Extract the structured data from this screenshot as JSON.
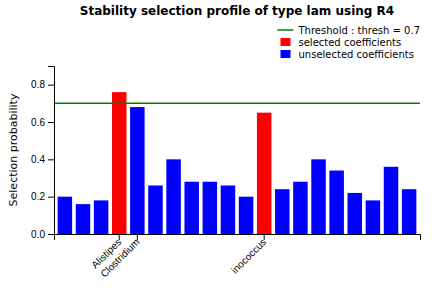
{
  "chart_data": {
    "type": "bar",
    "title": "Stability selection profile of type lam using R4",
    "ylabel": "Selection probability",
    "categories": [
      null,
      null,
      null,
      "Alistipes",
      "Clostridium",
      null,
      null,
      null,
      null,
      null,
      null,
      "inococcus",
      null,
      null,
      null,
      null,
      null,
      null,
      null,
      null
    ],
    "series": [
      {
        "name": "selected coefficients",
        "color": "red",
        "values": [
          null,
          null,
          null,
          0.76,
          null,
          null,
          null,
          null,
          null,
          null,
          null,
          0.65,
          null,
          null,
          null,
          null,
          null,
          null,
          null,
          null
        ]
      },
      {
        "name": "unselected coefficients",
        "color": "blue",
        "values": [
          0.2,
          0.16,
          0.18,
          null,
          0.68,
          0.26,
          0.4,
          0.28,
          0.28,
          0.26,
          0.2,
          null,
          0.24,
          0.28,
          0.4,
          0.34,
          0.22,
          0.18,
          0.36,
          0.24
        ]
      }
    ],
    "threshold": {
      "value": 0.7,
      "label": "Threshold : thresh = 0.7",
      "color": "green"
    },
    "ylim": [
      0.0,
      0.9
    ],
    "yticks": [
      {
        "value": 0,
        "label": "0.0"
      },
      0.2,
      0.4,
      0.6,
      0.8
    ],
    "legend": "upper right"
  }
}
